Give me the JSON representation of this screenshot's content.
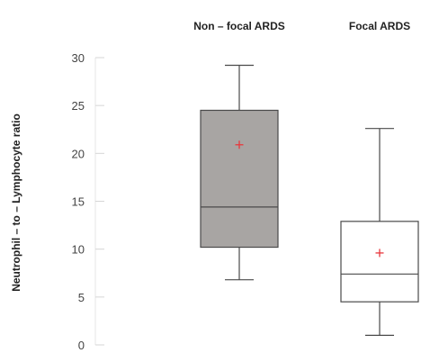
{
  "chart_data": {
    "type": "boxplot",
    "title": "",
    "xlabel": "",
    "ylabel": "Neutrophil – to – Lymphocyte ratio",
    "ylim": [
      0,
      30
    ],
    "yticks": [
      0,
      5,
      10,
      15,
      20,
      25,
      30
    ],
    "grid": false,
    "categories": [
      "Non – focal ARDS",
      "Focal ARDS"
    ],
    "boxes": [
      {
        "category": "Non – focal ARDS",
        "min": 6.8,
        "q1": 10.2,
        "median": 14.4,
        "q3": 24.5,
        "max": 29.2,
        "mean": 20.9
      },
      {
        "category": "Focal ARDS",
        "min": 1.0,
        "q1": 4.5,
        "median": 7.4,
        "q3": 12.9,
        "max": 22.6,
        "mean": 9.6
      }
    ],
    "colors": {
      "box_fills": [
        "#a8a5a3",
        "#ffffff"
      ],
      "box_stroke": "#4a4a4a",
      "mean_marker": "#e8383d"
    }
  }
}
